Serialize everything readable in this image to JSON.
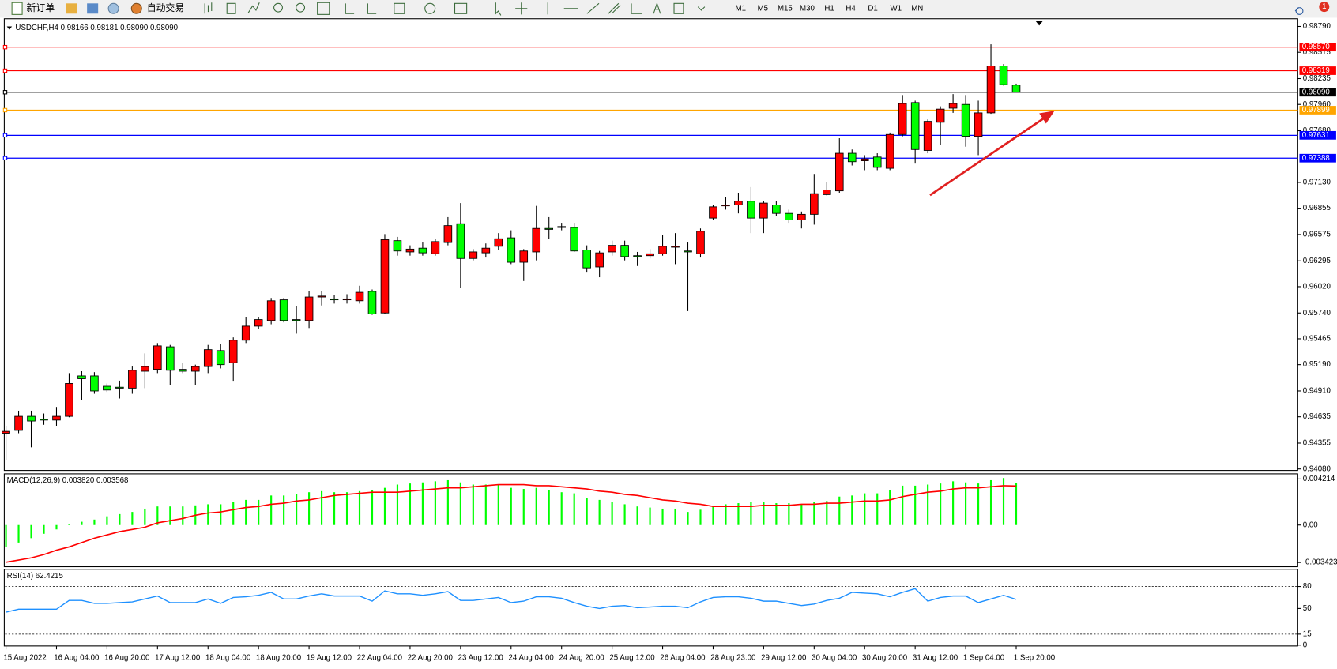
{
  "toolbar": {
    "new_order": "新订单",
    "auto_trading": "自动交易",
    "timeframes": [
      "M1",
      "M5",
      "M15",
      "M30",
      "H1",
      "H4",
      "D1",
      "W1",
      "MN"
    ],
    "notifications": "1"
  },
  "chart_data": [
    {
      "type": "candlestick",
      "title": "USDCHF,H4  0.98166 0.98181 0.98090 0.98090",
      "categories": [
        "15 Aug 2022",
        null,
        null,
        null,
        "16 Aug 04:00",
        null,
        null,
        null,
        "16 Aug 20:00",
        null,
        null,
        null,
        "17 Aug 12:00",
        null,
        null,
        null,
        "18 Aug 04:00",
        null,
        null,
        null,
        "18 Aug 20:00",
        null,
        null,
        null,
        "19 Aug 12:00",
        null,
        null,
        null,
        "22 Aug 04:00",
        null,
        null,
        null,
        "22 Aug 20:00",
        null,
        null,
        null,
        "23 Aug 12:00",
        null,
        null,
        null,
        "24 Aug 04:00",
        null,
        null,
        null,
        "24 Aug 20:00",
        null,
        null,
        null,
        "25 Aug 12:00",
        null,
        null,
        null,
        "26 Aug 04:00",
        null,
        null,
        null,
        "28 Aug 23:00",
        null,
        null,
        null,
        "29 Aug 12:00",
        null,
        null,
        null,
        "30 Aug 04:00",
        null,
        null,
        null,
        "30 Aug 20:00",
        null,
        null,
        null,
        "31 Aug 12:00",
        null,
        null,
        null,
        "1 Sep 04:00",
        null,
        null,
        null,
        "1 Sep 20:00"
      ],
      "open": [
        0.9446,
        0.9449,
        0.9464,
        0.9461,
        0.946,
        0.9464,
        0.9507,
        0.9507,
        0.9496,
        0.9495,
        0.9494,
        0.9512,
        0.9514,
        0.9538,
        0.9514,
        0.9512,
        0.9517,
        0.9534,
        0.9521,
        0.9545,
        0.956,
        0.9566,
        0.9588,
        0.9567,
        0.9566,
        0.9591,
        0.9589,
        0.9588,
        0.9587,
        0.9597,
        0.9574,
        0.9651,
        0.9639,
        0.9643,
        0.9637,
        0.9649,
        0.9669,
        0.9632,
        0.9638,
        0.9645,
        0.9654,
        0.9628,
        0.9639,
        0.9664,
        0.9665,
        0.9665,
        0.9641,
        0.9623,
        0.9639,
        0.9646,
        0.9635,
        0.9635,
        0.9637,
        0.9644,
        0.964,
        0.9637,
        0.9675,
        0.9688,
        0.9689,
        0.9693,
        0.9675,
        0.9689,
        0.968,
        0.9673,
        0.9679,
        0.97,
        0.9704,
        0.9744,
        0.9736,
        0.974,
        0.9728,
        0.9764,
        0.9798,
        0.9747,
        0.9777,
        0.9792,
        0.9796,
        0.9762,
        0.9787,
        0.9837,
        0.98166
      ],
      "high": [
        0.9454,
        0.947,
        0.947,
        0.9467,
        0.9474,
        0.951,
        0.9512,
        0.9511,
        0.9499,
        0.9502,
        0.9517,
        0.9531,
        0.9542,
        0.954,
        0.9521,
        0.9519,
        0.954,
        0.9541,
        0.9548,
        0.957,
        0.957,
        0.959,
        0.959,
        0.9581,
        0.9597,
        0.9597,
        0.9593,
        0.9594,
        0.9603,
        0.9599,
        0.9658,
        0.9655,
        0.9646,
        0.9649,
        0.9653,
        0.9676,
        0.9691,
        0.9642,
        0.9648,
        0.9659,
        0.9662,
        0.9642,
        0.9688,
        0.9676,
        0.967,
        0.967,
        0.9646,
        0.964,
        0.9651,
        0.9651,
        0.9639,
        0.9642,
        0.9657,
        0.9659,
        0.9649,
        0.9664,
        0.9689,
        0.9697,
        0.9702,
        0.9708,
        0.9693,
        0.9693,
        0.9684,
        0.9682,
        0.9722,
        0.9713,
        0.976,
        0.9748,
        0.9742,
        0.9744,
        0.9766,
        0.9806,
        0.98,
        0.978,
        0.9794,
        0.9807,
        0.9806,
        0.98,
        0.986,
        0.9839,
        0.98181
      ],
      "low": [
        0.9417,
        0.9446,
        0.9431,
        0.9455,
        0.9454,
        0.9463,
        0.9481,
        0.9488,
        0.949,
        0.9483,
        0.9488,
        0.9494,
        0.951,
        0.9497,
        0.951,
        0.9497,
        0.951,
        0.9515,
        0.9501,
        0.9542,
        0.9557,
        0.9562,
        0.9564,
        0.9552,
        0.9558,
        0.9582,
        0.9584,
        0.9584,
        0.9584,
        0.9572,
        0.9573,
        0.9635,
        0.9635,
        0.9635,
        0.9635,
        0.9646,
        0.9601,
        0.963,
        0.9633,
        0.9641,
        0.9626,
        0.9608,
        0.963,
        0.9653,
        0.9662,
        0.9639,
        0.9617,
        0.9612,
        0.9635,
        0.963,
        0.9624,
        0.9632,
        0.9635,
        0.9626,
        0.9576,
        0.9633,
        0.9673,
        0.9684,
        0.968,
        0.9659,
        0.9659,
        0.9677,
        0.967,
        0.9664,
        0.9668,
        0.9699,
        0.9702,
        0.9731,
        0.9726,
        0.9726,
        0.9726,
        0.9762,
        0.9733,
        0.9744,
        0.9753,
        0.9787,
        0.9751,
        0.9742,
        0.9786,
        0.9816,
        0.9809
      ],
      "close": [
        0.9448,
        0.9464,
        0.9459,
        0.946,
        0.9464,
        0.9499,
        0.9504,
        0.9491,
        0.9492,
        0.9494,
        0.9513,
        0.9517,
        0.9539,
        0.9513,
        0.9512,
        0.9517,
        0.9535,
        0.9519,
        0.9545,
        0.956,
        0.9567,
        0.9587,
        0.9566,
        0.9566,
        0.9591,
        0.9592,
        0.9588,
        0.9589,
        0.9596,
        0.9573,
        0.9652,
        0.964,
        0.9642,
        0.9638,
        0.965,
        0.9667,
        0.9632,
        0.9639,
        0.9643,
        0.9653,
        0.9628,
        0.964,
        0.9664,
        0.9663,
        0.9666,
        0.964,
        0.9622,
        0.9638,
        0.9646,
        0.9634,
        0.9634,
        0.9637,
        0.9645,
        0.9645,
        0.9639,
        0.9661,
        0.9687,
        0.9689,
        0.9693,
        0.9675,
        0.9691,
        0.968,
        0.9673,
        0.9679,
        0.9701,
        0.9705,
        0.9744,
        0.9735,
        0.9738,
        0.9729,
        0.9764,
        0.9797,
        0.9748,
        0.9778,
        0.9791,
        0.9797,
        0.9762,
        0.9787,
        0.9837,
        0.9817,
        0.9809
      ],
      "up_color": "#ff0000",
      "down_color": "#00ff00",
      "ylim": [
        0.94064,
        0.98872
      ],
      "yticks": [
        {
          "value": 0.9879,
          "label": "0.98790"
        },
        0.98515,
        0.98235,
        {
          "value": 0.9796,
          "label": "0.97960"
        },
        {
          "value": 0.9768,
          "label": "0.97680"
        },
        {
          "value": 0.9713,
          "label": "0.97130"
        },
        0.96855,
        0.96575,
        0.96295,
        {
          "value": 0.9602,
          "label": "0.96020"
        },
        {
          "value": 0.9574,
          "label": "0.95740"
        },
        0.95465,
        {
          "value": 0.9519,
          "label": "0.95190"
        },
        {
          "value": 0.9491,
          "label": "0.94910"
        },
        0.94635,
        0.94355,
        {
          "value": 0.9408,
          "label": "0.94080"
        }
      ],
      "hlines": [
        {
          "value": 0.9857,
          "label": "0.98570",
          "color": "#ff0000"
        },
        {
          "value": 0.98319,
          "label": "0.98319",
          "color": "#ff0000"
        },
        {
          "value": 0.9809,
          "label": "0.98090",
          "color": "#000000"
        },
        {
          "value": 0.97899,
          "label": "0.97899",
          "color": "#ffa500"
        },
        {
          "value": 0.97631,
          "label": "0.97631",
          "color": "#0000ff"
        },
        {
          "value": 0.97388,
          "label": "0.97388",
          "color": "#0000ff"
        }
      ]
    },
    {
      "type": "macd",
      "title": "MACD(12,26,9) 0.003820 0.003568",
      "histogram": {
        "color": "#00ff00",
        "values": [
          -0.002,
          -0.0016,
          -0.0012,
          -0.0008,
          -0.0004,
          0.0001,
          0.0003,
          0.0005,
          0.0008,
          0.001,
          0.0012,
          0.0015,
          0.0017,
          0.0017,
          0.0017,
          0.0018,
          0.0019,
          0.0019,
          0.0021,
          0.0023,
          0.0023,
          0.0027,
          0.0027,
          0.0028,
          0.003,
          0.0031,
          0.003,
          0.003,
          0.0031,
          0.0032,
          0.0034,
          0.0037,
          0.0038,
          0.0039,
          0.004,
          0.0041,
          0.0039,
          0.0037,
          0.0037,
          0.0037,
          0.0034,
          0.0033,
          0.0034,
          0.0032,
          0.003,
          0.0029,
          0.0025,
          0.0023,
          0.0021,
          0.0019,
          0.0017,
          0.0016,
          0.0015,
          0.0015,
          0.0012,
          0.0014,
          0.0017,
          0.0019,
          0.002,
          0.0021,
          0.0021,
          0.002,
          0.002,
          0.0019,
          0.0021,
          0.0022,
          0.0026,
          0.0027,
          0.0029,
          0.0029,
          0.0032,
          0.0036,
          0.0036,
          0.0037,
          0.0038,
          0.004,
          0.0039,
          0.0038,
          0.0041,
          0.0043,
          0.00382
        ]
      },
      "signal": {
        "color": "#ff0000",
        "values": [
          -0.0034,
          -0.0032,
          -0.003,
          -0.0027,
          -0.0023,
          -0.002,
          -0.0016,
          -0.0012,
          -0.0009,
          -0.0006,
          -0.0004,
          -0.0002,
          0.0002,
          0.0004,
          0.0006,
          0.0009,
          0.0011,
          0.0012,
          0.0014,
          0.0016,
          0.0017,
          0.0019,
          0.002,
          0.0022,
          0.0023,
          0.0025,
          0.0027,
          0.0028,
          0.0029,
          0.003,
          0.003,
          0.003,
          0.0031,
          0.0032,
          0.0033,
          0.0034,
          0.0034,
          0.0035,
          0.0036,
          0.0037,
          0.0037,
          0.0037,
          0.0036,
          0.0036,
          0.0035,
          0.0034,
          0.0033,
          0.0031,
          0.003,
          0.0028,
          0.0027,
          0.0025,
          0.0023,
          0.0022,
          0.002,
          0.0019,
          0.0017,
          0.0017,
          0.0017,
          0.0017,
          0.0018,
          0.0018,
          0.0018,
          0.0019,
          0.0019,
          0.002,
          0.002,
          0.0021,
          0.0022,
          0.0022,
          0.0023,
          0.0026,
          0.0028,
          0.003,
          0.0031,
          0.0033,
          0.0034,
          0.0034,
          0.0035,
          0.0036,
          0.003568
        ]
      },
      "ylim": [
        -0.003735,
        0.004604
      ],
      "yticks": [
        0.004214,
        {
          "value": 0,
          "label": "0.00"
        },
        -0.003423
      ]
    },
    {
      "type": "rsi",
      "title": "RSI(14) 62.4215",
      "color": "#1e90ff",
      "values": [
        45,
        49,
        49,
        49,
        49,
        61,
        61,
        57,
        57,
        58,
        59,
        63,
        67,
        58,
        58,
        58,
        63,
        57,
        65,
        66,
        68,
        72,
        63,
        63,
        67,
        70,
        67,
        67,
        67,
        60,
        74,
        70,
        70,
        68,
        70,
        73,
        61,
        61,
        63,
        65,
        58,
        60,
        66,
        66,
        64,
        58,
        53,
        50,
        53,
        54,
        51,
        52,
        53,
        53,
        51,
        59,
        65,
        66,
        66,
        64,
        60,
        60,
        57,
        54,
        56,
        61,
        64,
        72,
        71,
        70,
        66,
        72,
        77,
        60,
        65,
        67,
        67,
        58,
        63,
        68,
        62.4215
      ],
      "ylim": [
        0,
        100
      ],
      "yticks": [
        80,
        50,
        15,
        0
      ],
      "levels": [
        80,
        15
      ]
    }
  ]
}
